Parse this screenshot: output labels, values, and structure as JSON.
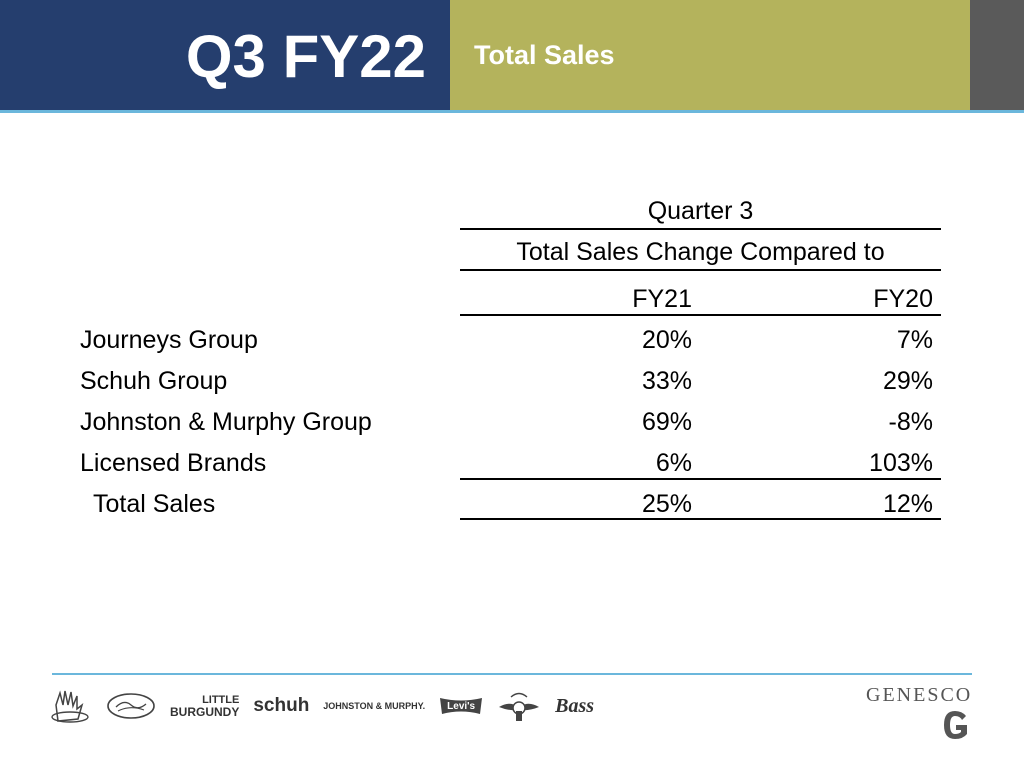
{
  "header": {
    "title": "Q3 FY22",
    "subtitle": "Total Sales",
    "colors": {
      "left": "#253e6e",
      "middle": "#b4b35c",
      "right": "#5a5a5a",
      "rule": "#6bb7dc"
    }
  },
  "table": {
    "group_header": "Quarter 3",
    "subheader": "Total Sales Change Compared to",
    "columns": [
      "FY21",
      "FY20"
    ],
    "rows": [
      {
        "label": "Journeys Group",
        "fy21": "20%",
        "fy20": "7%"
      },
      {
        "label": "Schuh Group",
        "fy21": "33%",
        "fy20": "29%"
      },
      {
        "label": "Johnston & Murphy Group",
        "fy21": "69%",
        "fy20": "-8%"
      },
      {
        "label": "Licensed Brands",
        "fy21": "6%",
        "fy20": "103%"
      }
    ],
    "total": {
      "label": "Total Sales",
      "fy21": "25%",
      "fy20": "12%"
    }
  },
  "footer": {
    "brand_logos": [
      {
        "icon": "journeys-hand-logo-icon"
      },
      {
        "icon": "journeys-kidz-logo-icon"
      },
      {
        "text_top": "LITTLE",
        "text_bottom": "BURGUNDY"
      },
      {
        "text": "schuh"
      },
      {
        "text": "JOHNSTON & MURPHY."
      },
      {
        "text": "Levi's"
      },
      {
        "icon": "dockers-wings-logo-icon"
      },
      {
        "text": "Bass"
      }
    ],
    "company": "GENESCO"
  }
}
